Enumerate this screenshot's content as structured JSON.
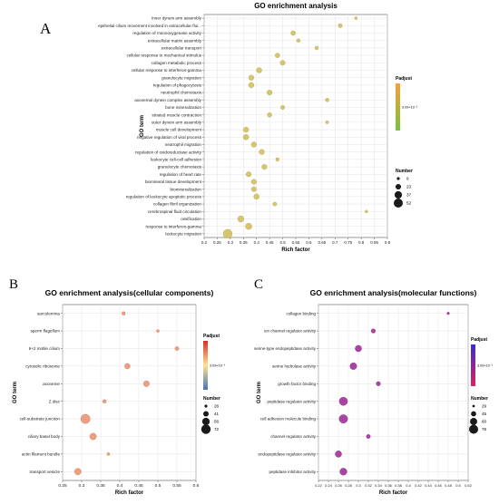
{
  "chart_data": [
    {
      "panel": "A",
      "type": "scatter",
      "title": "GO enrichment analysis",
      "xlabel": "Rich factor",
      "ylabel": "GO term",
      "xlim": [
        0.2,
        0.9
      ],
      "xticks": [
        "0.2",
        "0.25",
        "0.3",
        "0.35",
        "0.4",
        "0.45",
        "0.5",
        "0.55",
        "0.6",
        "0.65",
        "0.7",
        "0.75",
        "0.8",
        "0.85",
        "0.9"
      ],
      "grid": true,
      "legend": {
        "padj_title": "Padjust",
        "padj_tick": "3.09×10⁻¹",
        "colors": [
          "#f2a23a",
          "#7cc043"
        ],
        "size_title": "Number",
        "size_labels": [
          "9",
          "23",
          "37",
          "52"
        ],
        "size_values": [
          9,
          23,
          37,
          52
        ],
        "placement": "right"
      },
      "point_color": "#d4c266",
      "point_stroke": "#a89a3c",
      "categories": [
        "inner dynein arm assembly",
        "epithelial cilium movement involved in extracellular flui...",
        "regulation of monooxygenase activity",
        "extracellular matrix assembly",
        "extracellular transport",
        "cellular response to mechanical stimulus",
        "collagen metabolic process",
        "cellular response to interferon-gamma",
        "granulocyte migration",
        "regulation of phagocytosis",
        "neutrophil chemotaxis",
        "axonemal dynein complex assembly",
        "bone mineralization",
        "striated muscle contraction",
        "outer dynein arm assembly",
        "muscle cell development",
        "negative regulation of viral process",
        "neutrophil migration",
        "regulation of oxidoreductase activity",
        "leukocyte cell-cell adhesion",
        "granulocyte chemotaxis",
        "regulation of heart rate",
        "biomineral tissue development",
        "biomineralization",
        "regulation of leukocyte apoptotic process",
        "collagen fibril organization",
        "cerebrospinal fluid circulation",
        "ossification",
        "response to interferon-gamma",
        "leukocyte migration"
      ],
      "x": [
        0.78,
        0.72,
        0.54,
        0.56,
        0.63,
        0.48,
        0.5,
        0.41,
        0.38,
        0.38,
        0.45,
        0.67,
        0.5,
        0.45,
        0.67,
        0.36,
        0.36,
        0.39,
        0.42,
        0.48,
        0.43,
        0.37,
        0.39,
        0.39,
        0.4,
        0.47,
        0.82,
        0.34,
        0.37,
        0.29
      ],
      "size": [
        9,
        15,
        18,
        12,
        12,
        18,
        20,
        23,
        22,
        23,
        21,
        13,
        15,
        17,
        10,
        22,
        23,
        22,
        22,
        12,
        21,
        21,
        21,
        20,
        23,
        14,
        9,
        28,
        30,
        52
      ]
    },
    {
      "panel": "B",
      "type": "scatter",
      "title": "GO enrichment analysis(cellular components)",
      "xlabel": "Rich factor",
      "ylabel": "GO term",
      "xlim": [
        0.25,
        0.6
      ],
      "xticks": [
        "0.25",
        "0.3",
        "0.35",
        "0.4",
        "0.45",
        "0.5",
        "0.55",
        "0.6"
      ],
      "grid": true,
      "legend": {
        "padj_title": "Padjust",
        "padj_tick": "3.09×10⁻¹",
        "colors": [
          "#d73027",
          "#fee090",
          "#4575b4"
        ],
        "size_title": "Number",
        "size_labels": [
          "26",
          "41",
          "56",
          "72"
        ],
        "size_values": [
          26,
          41,
          56,
          72
        ],
        "placement": "right"
      },
      "point_color": "#eb9a7c",
      "point_stroke": "#c26a4c",
      "categories": [
        "sarcolemma",
        "sperm flagellum",
        "9+2 motile cilium",
        "cytosolic ribosome",
        "axoneme",
        "Z disc",
        "cell-substrate junction",
        "ciliary basal body",
        "actin filament bundle",
        "transport vesicle"
      ],
      "x": [
        0.41,
        0.5,
        0.55,
        0.42,
        0.47,
        0.36,
        0.31,
        0.33,
        0.37,
        0.29
      ],
      "size": [
        30,
        26,
        32,
        42,
        45,
        30,
        72,
        50,
        26,
        50
      ]
    },
    {
      "panel": "C",
      "type": "scatter",
      "title": "GO enrichment analysis(molecular functions)",
      "xlabel": "Rich factor",
      "ylabel": "GO term",
      "xlim": [
        0.22,
        0.52
      ],
      "xticks": [
        "0.22",
        "0.24",
        "0.26",
        "0.28",
        "0.3",
        "0.32",
        "0.34",
        "0.36",
        "0.38",
        "0.4",
        "0.42",
        "0.44",
        "0.46",
        "0.48",
        "0.5",
        "0.52"
      ],
      "grid": true,
      "legend": {
        "padj_title": "Padjust",
        "padj_tick": "3.09×10⁻¹",
        "colors": [
          "#3b2bd6",
          "#e0215a"
        ],
        "size_title": "Number",
        "size_labels": [
          "29",
          "45",
          "60",
          "76"
        ],
        "size_values": [
          29,
          45,
          60,
          76
        ],
        "placement": "right"
      },
      "point_color": "#a43a9e",
      "point_stroke": "#7a1f76",
      "categories": [
        "collagen binding",
        "ion channel regulator activity",
        "serine-type endopeptidase activity",
        "serine hydrolase activity",
        "growth factor binding",
        "peptidase regulator activity",
        "cell adhesion molecule binding",
        "channel regulator activity",
        "endopeptidase regulator activity",
        "peptidase inhibitor activity"
      ],
      "x": [
        0.48,
        0.33,
        0.3,
        0.29,
        0.34,
        0.27,
        0.27,
        0.32,
        0.26,
        0.27
      ],
      "size": [
        29,
        40,
        55,
        58,
        40,
        70,
        72,
        38,
        55,
        60
      ]
    }
  ],
  "panel_labels": {
    "a": "A",
    "b": "B",
    "c": "C"
  }
}
